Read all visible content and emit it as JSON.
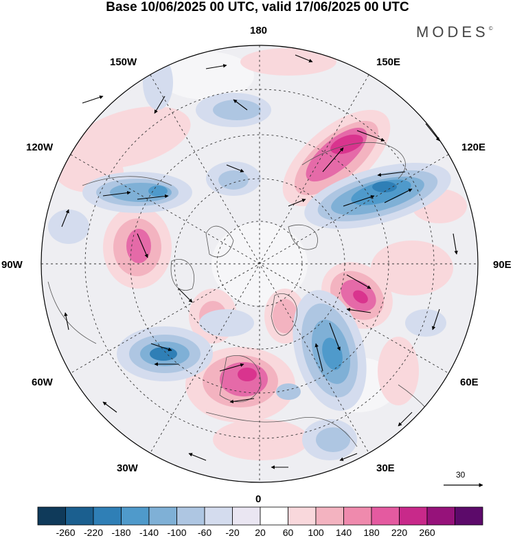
{
  "title": "Base 10/06/2025 00 UTC, valid 17/06/2025 00 UTC",
  "brand": "MODES",
  "brand_mark": "©",
  "longitude_labels": {
    "top": "180",
    "top_left": "150W",
    "top_right": "150E",
    "upper_left": "120W",
    "upper_right": "120E",
    "left": "90W",
    "right": "90E",
    "lower_left": "60W",
    "lower_right": "60E",
    "bottom_left": "30W",
    "bottom_right": "30E",
    "bottom": "0"
  },
  "reference_vector": {
    "value": "30"
  },
  "colorbar": {
    "tick_labels": [
      "-260",
      "-220",
      "-180",
      "-140",
      "-100",
      "-60",
      "-20",
      "20",
      "60",
      "100",
      "140",
      "180",
      "220",
      "260"
    ],
    "colors": [
      "#0f3a5a",
      "#1b5f8f",
      "#2f7fb6",
      "#4f9acb",
      "#7fb0d6",
      "#aec6e2",
      "#d4dcee",
      "#eae6f2",
      "#ffffff",
      "#f9d8dc",
      "#f3b3c0",
      "#ef8aad",
      "#e45aa0",
      "#c8298a",
      "#96127a",
      "#5c0a6a"
    ]
  },
  "anomaly_blobs": [
    {
      "kind": "positive",
      "level": 180,
      "color": "#d9348e"
    },
    {
      "kind": "positive",
      "level": 140,
      "color": "#e56aa8"
    },
    {
      "kind": "positive",
      "level": 100,
      "color": "#f3b3c0"
    },
    {
      "kind": "positive",
      "level": 60,
      "color": "#f9d8dc"
    },
    {
      "kind": "negative",
      "level": -180,
      "color": "#2f7fb6"
    },
    {
      "kind": "negative",
      "level": -140,
      "color": "#4f9acb"
    },
    {
      "kind": "negative",
      "level": -100,
      "color": "#7fb0d6"
    },
    {
      "kind": "negative",
      "level": -60,
      "color": "#aec6e2"
    }
  ]
}
